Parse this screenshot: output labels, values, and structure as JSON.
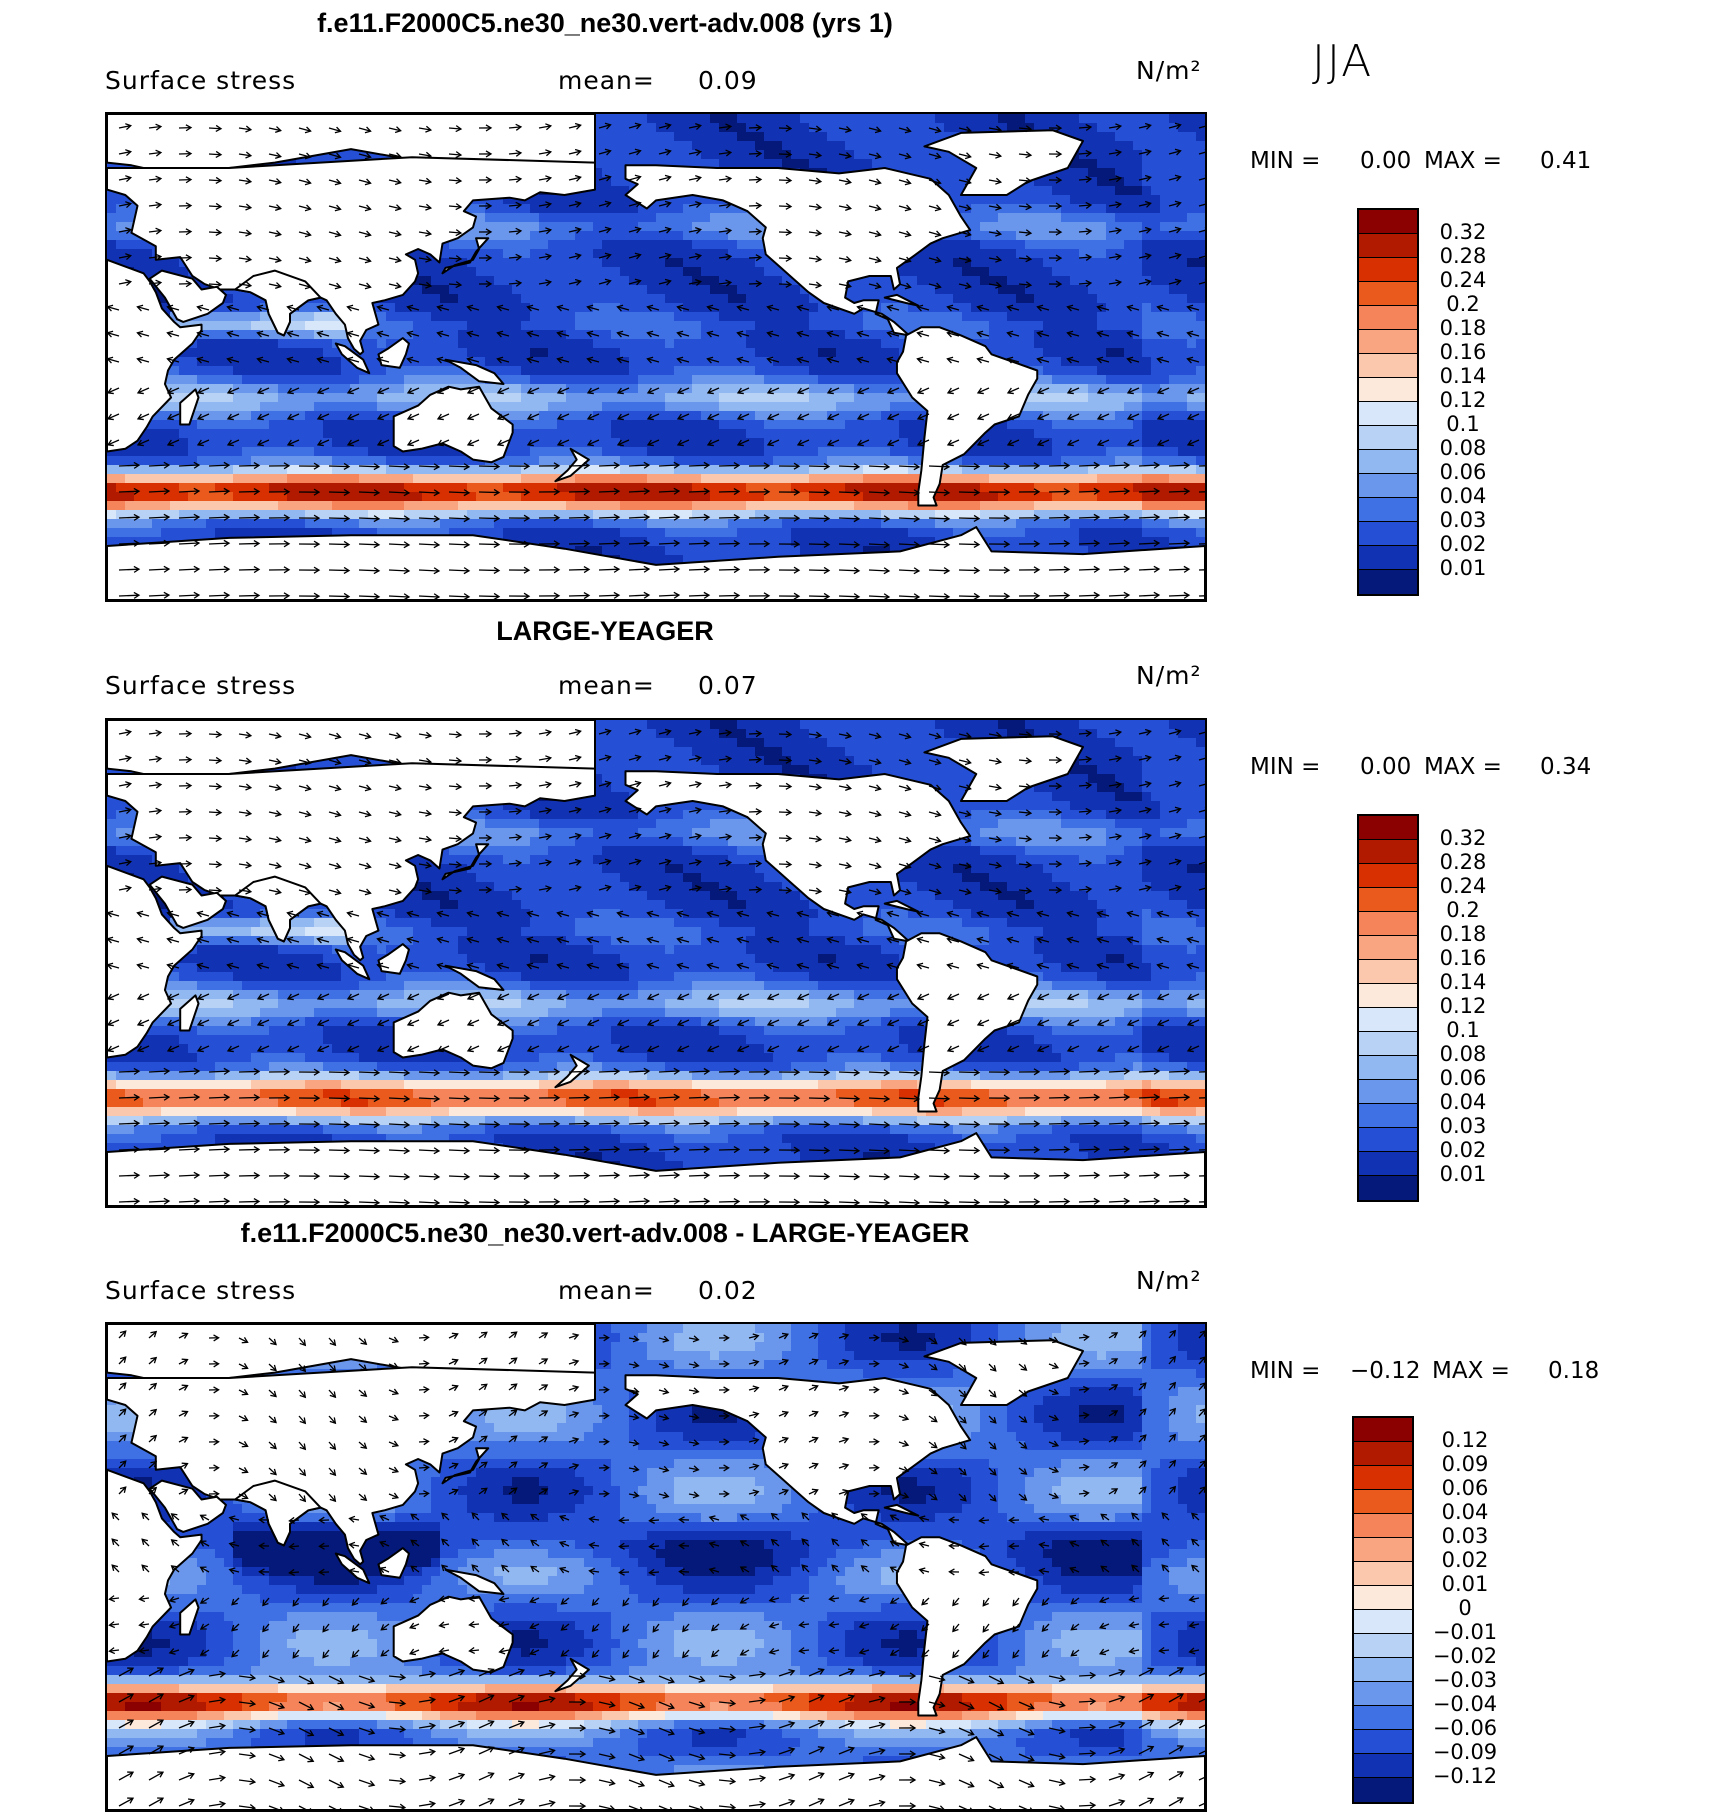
{
  "season": "JJA",
  "colors": {
    "land": "#ffffff",
    "coast": "#000000",
    "arrow": "#000000"
  },
  "panels": [
    {
      "title": "f.e11.F2000C5.ne30_ne30.vert-adv.008 (yrs 1)",
      "variable": "Surface stress",
      "mean_label": "mean=",
      "mean_value": "0.09",
      "units": "N/m²",
      "min_label": "MIN =",
      "min_value": "0.00",
      "max_label": "MAX =",
      "max_value": "0.41",
      "colorbar": {
        "labels": [
          "0.32",
          "0.28",
          "0.24",
          "0.2",
          "0.18",
          "0.16",
          "0.14",
          "0.12",
          "0.1",
          "0.08",
          "0.06",
          "0.04",
          "0.03",
          "0.02",
          "0.01"
        ],
        "colors": [
          "#8b0000",
          "#b21a00",
          "#d83000",
          "#ea5a1c",
          "#f5845a",
          "#f9a582",
          "#fbc8ae",
          "#fde8dc",
          "#d8e8fa",
          "#b8d2f6",
          "#92b8f2",
          "#6a96ec",
          "#3f70e4",
          "#2550d6",
          "#1232b4",
          "#05197a"
        ]
      }
    },
    {
      "title": "LARGE-YEAGER",
      "variable": "Surface stress",
      "mean_label": "mean=",
      "mean_value": "0.07",
      "units": "N/m²",
      "min_label": "MIN =",
      "min_value": "0.00",
      "max_label": "MAX =",
      "max_value": "0.34",
      "colorbar": {
        "labels": [
          "0.32",
          "0.28",
          "0.24",
          "0.2",
          "0.18",
          "0.16",
          "0.14",
          "0.12",
          "0.1",
          "0.08",
          "0.06",
          "0.04",
          "0.03",
          "0.02",
          "0.01"
        ],
        "colors": [
          "#8b0000",
          "#b21a00",
          "#d83000",
          "#ea5a1c",
          "#f5845a",
          "#f9a582",
          "#fbc8ae",
          "#fde8dc",
          "#d8e8fa",
          "#b8d2f6",
          "#92b8f2",
          "#6a96ec",
          "#3f70e4",
          "#2550d6",
          "#1232b4",
          "#05197a"
        ]
      }
    },
    {
      "title": "f.e11.F2000C5.ne30_ne30.vert-adv.008 - LARGE-YEAGER",
      "variable": "Surface stress",
      "mean_label": "mean=",
      "mean_value": "0.02",
      "units": "N/m²",
      "min_label": "MIN =",
      "min_value": "−0.12",
      "max_label": "MAX =",
      "max_value": "0.18",
      "colorbar": {
        "labels": [
          "0.12",
          "0.09",
          "0.06",
          "0.04",
          "0.03",
          "0.02",
          "0.01",
          "0",
          "−0.01",
          "−0.02",
          "−0.03",
          "−0.04",
          "−0.06",
          "−0.09",
          "−0.12"
        ],
        "colors": [
          "#8b0000",
          "#b21a00",
          "#d83000",
          "#ea5a1c",
          "#f5845a",
          "#f9a582",
          "#fbc8ae",
          "#fde8dc",
          "#d8e8fa",
          "#b8d2f6",
          "#92b8f2",
          "#6a96ec",
          "#3f70e4",
          "#2550d6",
          "#1232b4",
          "#05197a"
        ]
      }
    }
  ]
}
